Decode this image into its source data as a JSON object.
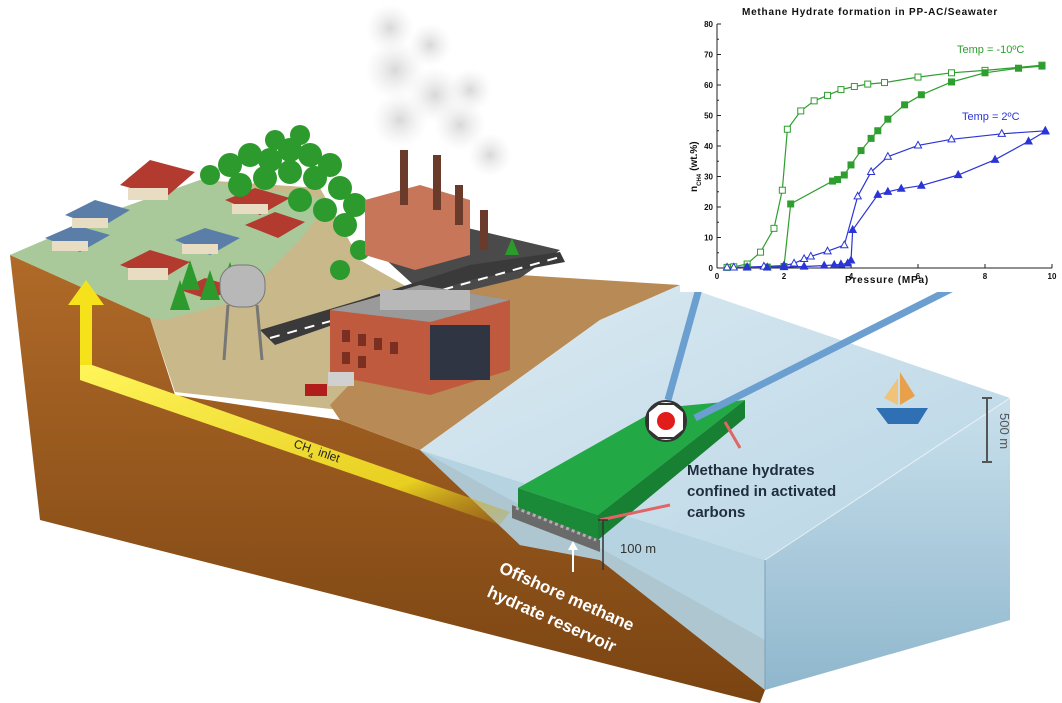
{
  "chart_data": {
    "type": "line",
    "title": "Methane Hydrate formation in PP-AC/Seawater",
    "xlabel": "Pressure (MPa)",
    "ylabel_main": "n",
    "ylabel_sub": "CH4",
    "ylabel_rest": "(wt.%)",
    "xlim": [
      0,
      10
    ],
    "ylim": [
      0,
      80
    ],
    "xticks": [
      0,
      2,
      4,
      6,
      8,
      10
    ],
    "yticks": [
      0,
      10,
      20,
      30,
      40,
      50,
      60,
      70,
      80
    ],
    "series": [
      {
        "name": "Temp = -10ºC",
        "color": "#2e9e2e",
        "marker": "square-open",
        "x": [
          0.3,
          0.5,
          0.9,
          1.3,
          1.7,
          1.95,
          2.1,
          2.5,
          2.9,
          3.3,
          3.7,
          4.1,
          4.5,
          5.0,
          6.0,
          7.0,
          8.0,
          9.7
        ],
        "y": [
          0.2,
          0.4,
          1.3,
          5.2,
          13,
          25.5,
          45.5,
          51.5,
          54.8,
          56.6,
          58.5,
          59.5,
          60.3,
          60.8,
          62.6,
          64.0,
          64.8,
          66.5
        ]
      },
      {
        "name": "",
        "color": "#2e9e2e",
        "marker": "square-filled",
        "x": [
          0.9,
          1.5,
          2.0,
          2.2,
          3.45,
          3.6,
          3.8,
          4.0,
          4.3,
          4.6,
          4.8,
          5.1,
          5.6,
          6.1,
          7.0,
          8.0,
          9.0,
          9.7
        ],
        "y": [
          0.3,
          0.3,
          0.5,
          21,
          28.5,
          29,
          30.5,
          33.8,
          38.5,
          42.5,
          45,
          48.8,
          53.5,
          56.8,
          61.0,
          64.0,
          65.5,
          66.2
        ]
      },
      {
        "name": "Temp = 2ºC",
        "color": "#2b35d6",
        "marker": "triangle-open",
        "x": [
          0.3,
          0.5,
          0.9,
          1.4,
          2.0,
          2.3,
          2.6,
          2.8,
          3.3,
          3.8,
          4.2,
          4.6,
          5.1,
          6.0,
          7.0,
          8.5,
          9.8
        ],
        "y": [
          0.2,
          0.2,
          0.3,
          0.5,
          0.8,
          1.5,
          3.0,
          3.8,
          5.5,
          7.5,
          23.5,
          31.5,
          36.5,
          40.2,
          42.2,
          44.0,
          45.0
        ]
      },
      {
        "name": "",
        "color": "#2b35d6",
        "marker": "triangle-filled",
        "x": [
          0.9,
          1.5,
          2.0,
          2.6,
          3.2,
          3.5,
          3.7,
          3.9,
          4.0,
          4.05,
          4.8,
          5.1,
          5.5,
          6.1,
          7.2,
          8.3,
          9.3,
          9.8
        ],
        "y": [
          0.2,
          0.2,
          0.3,
          0.5,
          0.8,
          1.0,
          1.2,
          1.5,
          2.5,
          12.5,
          24,
          25,
          26,
          27,
          30.5,
          35.5,
          41.5,
          44.8
        ]
      }
    ]
  },
  "labels": {
    "ch4_inlet_ch": "CH",
    "ch4_inlet_sub": "4",
    "ch4_inlet_rest": "inlet",
    "confined_line1": "Methane hydrates",
    "confined_line2": "confined in activated",
    "confined_line3": "carbons",
    "depth_100": "100 m",
    "depth_500": "500 m",
    "reservoir_line1": "Offshore methane",
    "reservoir_line2": "hydrate reservoir"
  },
  "colors": {
    "soil": "#9a5a20",
    "soil_dark": "#7a4412",
    "grass": "#8fb67a",
    "sea_top": "#bcd7e6",
    "sea_side": "#9fc4d8",
    "hydrate_slab": "#1f9a3c",
    "arrow_yellow": "#f5e21b",
    "pointer_blue": "#6a9fd0"
  }
}
